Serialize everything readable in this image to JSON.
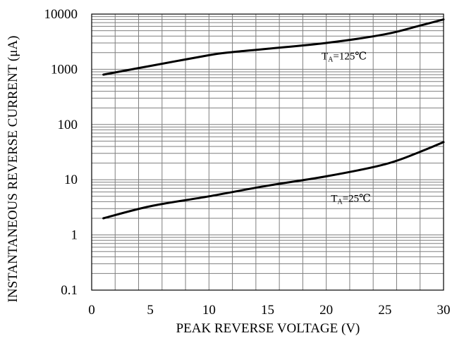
{
  "chart_data": {
    "type": "line",
    "title": "",
    "xlabel": "PEAK REVERSE VOLTAGE (V)",
    "ylabel": "INSTANTANEOUS REVERSE CURRENT (μA)",
    "xlim": [
      0,
      30
    ],
    "ylim": [
      0.1,
      10000
    ],
    "yscale": "log",
    "x_ticks": [
      0,
      5,
      10,
      15,
      20,
      25,
      30
    ],
    "y_ticks": [
      0.1,
      1,
      10,
      100,
      1000,
      10000
    ],
    "x_tick_labels": [
      "0",
      "5",
      "10",
      "15",
      "20",
      "25",
      "30"
    ],
    "y_tick_labels": [
      "0.1",
      "1",
      "10",
      "100",
      "1000",
      "10000"
    ],
    "grid": true,
    "series": [
      {
        "name": "Tₐ=125℃",
        "label_text": "=125℃",
        "x": [
          1,
          5,
          10,
          12,
          15,
          20,
          25,
          28,
          30
        ],
        "y": [
          800,
          1150,
          1800,
          2050,
          2350,
          3000,
          4300,
          6200,
          8000
        ]
      },
      {
        "name": "Tₐ=25℃",
        "label_text": "=25℃",
        "x": [
          1,
          5,
          10,
          15,
          20,
          25,
          28,
          30
        ],
        "y": [
          2,
          3.3,
          5,
          7.8,
          11.5,
          19,
          32,
          48
        ]
      }
    ],
    "annotations": [
      {
        "series": 0,
        "prefix": "T",
        "sub": "A",
        "text": "=125℃",
        "x": 19.6,
        "y": 1500
      },
      {
        "series": 1,
        "prefix": "T",
        "sub": "A",
        "text": "=25℃",
        "x": 20.4,
        "y": 4.0
      }
    ]
  }
}
